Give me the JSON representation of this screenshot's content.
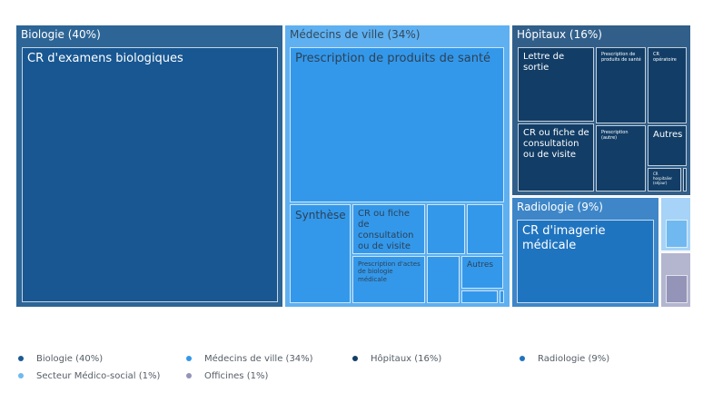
{
  "chart_data": {
    "type": "treemap",
    "groups": [
      {
        "name": "Biologie (40%)",
        "value": 40,
        "color": "#2d6596",
        "children": [
          {
            "name": "CR d'examens biologiques",
            "value": 40,
            "color": "#185792"
          }
        ]
      },
      {
        "name": "Médecins de ville (34%)",
        "value": 34,
        "color": "#5eb0f0",
        "children": [
          {
            "name": "Prescription de produits de santé",
            "value": 17.5,
            "color": "#3498ea"
          },
          {
            "name": "Synthèse",
            "value": 3.6,
            "color": "#3498ea"
          },
          {
            "name": "CR ou fiche de consultation ou de visite",
            "value": 3.9,
            "color": "#3498ea"
          },
          {
            "name": "Prescription d'actes de biologie médicale",
            "value": 3.0,
            "color": "#3498ea"
          },
          {
            "name": "",
            "value": 1.6,
            "color": "#3498ea"
          },
          {
            "name": "",
            "value": 1.0,
            "color": "#3498ea"
          },
          {
            "name": "",
            "value": 1.2,
            "color": "#3498ea"
          },
          {
            "name": "Autres",
            "value": 1.2,
            "color": "#3498ea"
          },
          {
            "name": "",
            "value": 0.5,
            "color": "#3498ea"
          },
          {
            "name": "",
            "value": 0.1,
            "color": "#3498ea"
          }
        ]
      },
      {
        "name": "Hôpitaux (16%)",
        "value": 16,
        "color": "#315f8a",
        "children": [
          {
            "name": "Lettre de sortie",
            "value": 3.4,
            "color": "#123d66"
          },
          {
            "name": "CR ou fiche de consultation ou de visite",
            "value": 3.3,
            "color": "#123d66"
          },
          {
            "name": "Prescription de produits de santé",
            "value": 3.2,
            "color": "#123d66"
          },
          {
            "name": "Prescription (autre)",
            "value": 2.6,
            "color": "#123d66"
          },
          {
            "name": "CR opératoire",
            "value": 2.3,
            "color": "#123d66"
          },
          {
            "name": "Autres",
            "value": 1.1,
            "color": "#123d66"
          },
          {
            "name": "CR hospitalier (séjour)",
            "value": 0.5,
            "color": "#123d66"
          },
          {
            "name": "",
            "value": 0.05,
            "color": "#123d66"
          }
        ]
      },
      {
        "name": "Radiologie (9%)",
        "value": 9,
        "color": "#3e86c8",
        "children": [
          {
            "name": "CR d'imagerie médicale",
            "value": 9,
            "color": "#1f74c0"
          }
        ]
      },
      {
        "name": "",
        "value": 1,
        "color": "#a6d3f7",
        "children": [
          {
            "name": "",
            "value": 1,
            "color": "#6fb9f0"
          }
        ]
      },
      {
        "name": "",
        "value": 1,
        "color": "#b4b5cf",
        "children": [
          {
            "name": "",
            "value": 1,
            "color": "#9394b8"
          }
        ]
      }
    ],
    "legend": [
      {
        "label": "Biologie (40%)",
        "color": "#1c5a94"
      },
      {
        "label": "Médecins de ville (34%)",
        "color": "#3498ea"
      },
      {
        "label": "Hôpitaux (16%)",
        "color": "#123d66"
      },
      {
        "label": "Radiologie (9%)",
        "color": "#1f74c0"
      },
      {
        "label": "Secteur Médico-social (1%)",
        "color": "#6fb9f0"
      },
      {
        "label": "Officines (1%)",
        "color": "#9394b8"
      }
    ],
    "legend_position": "bottom"
  }
}
